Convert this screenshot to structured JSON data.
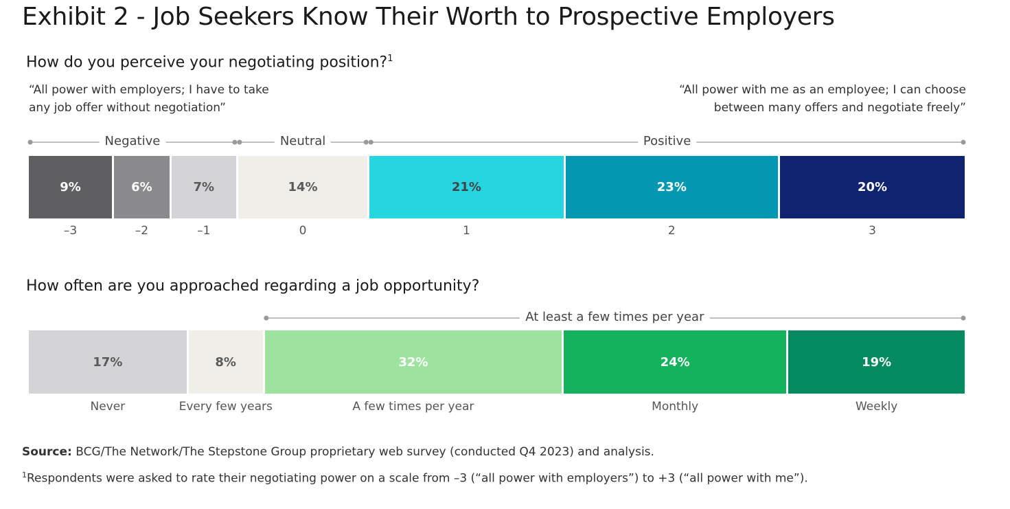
{
  "title": "Exhibit 2 - Job Seekers Know Their Worth to Prospective Employers",
  "colors": {
    "neg3": "#5f5f61",
    "neg2": "#8a8a8c",
    "neg1": "#d4d4d6",
    "zero": "#f0eee8",
    "pos1": "#27d5e0",
    "pos2": "#0398b2",
    "pos3": "#0f2370",
    "never": "#d4d4d6",
    "every_few_years": "#f0eee8",
    "few_times": "#9de39f",
    "monthly": "#14b25c",
    "weekly": "#038a5e"
  },
  "chart_data": [
    {
      "type": "bar",
      "orientation": "stacked-horizontal",
      "title": "How do you perceive your negotiating position?",
      "title_superscript": "1",
      "left_quote": [
        "“All power with employers; I have to take",
        "any job offer without negotiation”"
      ],
      "right_quote": [
        "“All power with me as an employee; I can choose",
        "between many offers and negotiate freely”"
      ],
      "groups": [
        {
          "label": "Negative",
          "from": 0,
          "to": 2
        },
        {
          "label": "Neutral",
          "from": 3,
          "to": 3
        },
        {
          "label": "Positive",
          "from": 4,
          "to": 6
        }
      ],
      "categories": [
        "–3",
        "–2",
        "–1",
        "0",
        "1",
        "2",
        "3"
      ],
      "values": [
        9,
        6,
        7,
        14,
        21,
        23,
        20
      ],
      "value_labels": [
        "9%",
        "6%",
        "7%",
        "14%",
        "21%",
        "23%",
        "20%"
      ],
      "units": "%"
    },
    {
      "type": "bar",
      "orientation": "stacked-horizontal",
      "title": "How often are you approached regarding a job opportunity?",
      "groups": [
        {
          "label": "At least a few times per year",
          "from": 2,
          "to": 4
        }
      ],
      "categories": [
        "Never",
        "Every few years",
        "A few times per year",
        "Monthly",
        "Weekly"
      ],
      "values": [
        17,
        8,
        32,
        24,
        19
      ],
      "value_labels": [
        "17%",
        "8%",
        "32%",
        "24%",
        "19%"
      ],
      "units": "%"
    }
  ],
  "footer": {
    "source_label": "Source:",
    "source_text": "BCG/The Network/The Stepstone Group proprietary web survey (conducted Q4 2023) and analysis.",
    "footnote_marker": "1",
    "footnote_text": "Respondents were asked to rate their negotiating power on a scale from –3 (“all power with employers”) to +3 (“all power with me”)."
  }
}
